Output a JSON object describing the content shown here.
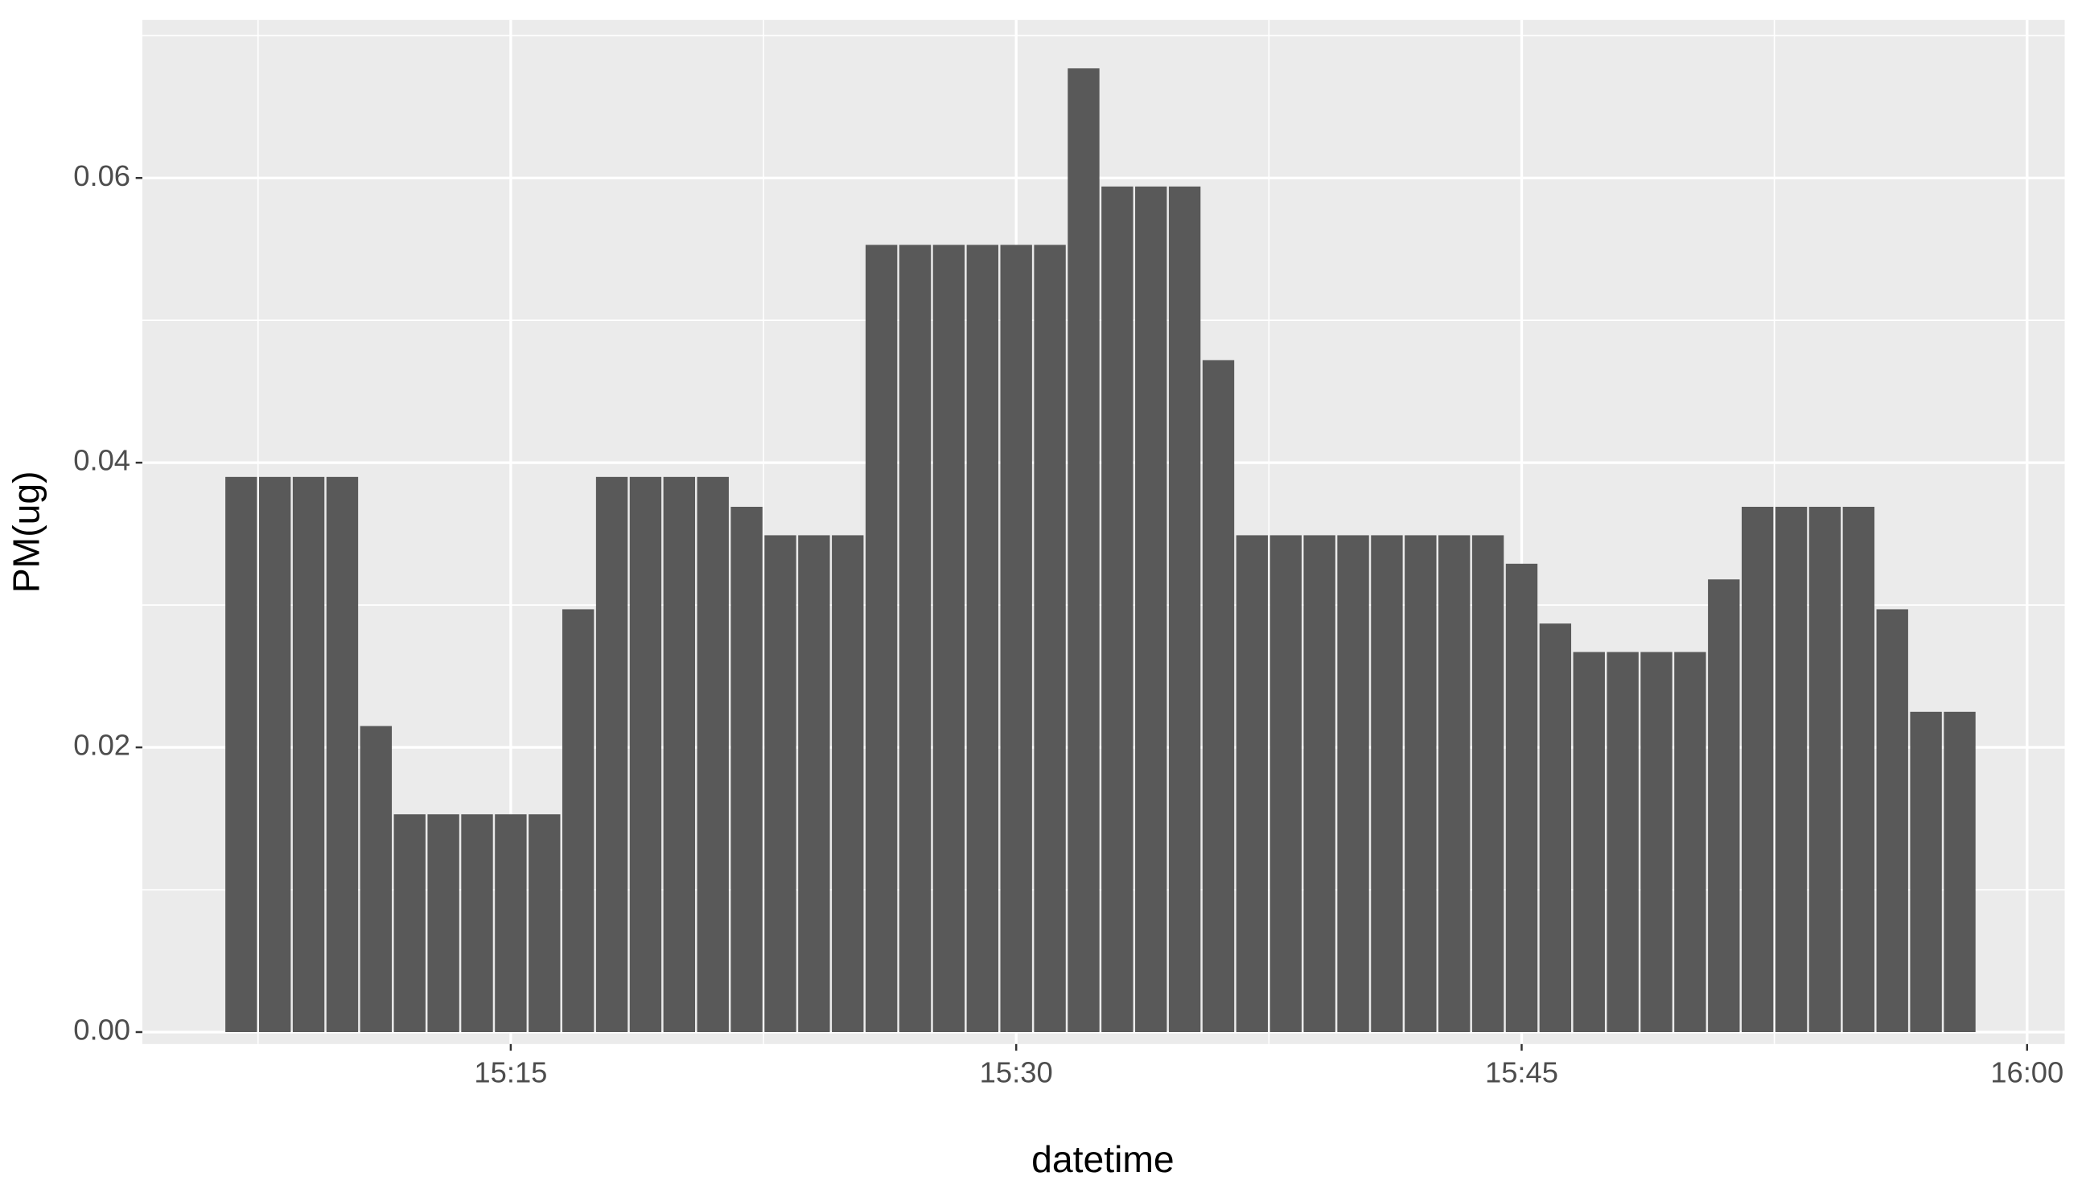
{
  "chart_data": {
    "type": "bar",
    "x_label": "datetime",
    "y_label": "PM(ug)",
    "color": "#595959",
    "grid": true,
    "x": [
      "15:07",
      "15:08",
      "15:09",
      "15:10",
      "15:11",
      "15:12",
      "15:13",
      "15:14",
      "15:15",
      "15:16",
      "15:17",
      "15:18",
      "15:19",
      "15:20",
      "15:21",
      "15:22",
      "15:23",
      "15:24",
      "15:25",
      "15:26",
      "15:27",
      "15:28",
      "15:29",
      "15:30",
      "15:31",
      "15:32",
      "15:33",
      "15:34",
      "15:35",
      "15:36",
      "15:37",
      "15:38",
      "15:39",
      "15:40",
      "15:41",
      "15:42",
      "15:43",
      "15:44",
      "15:45",
      "15:46",
      "15:47",
      "15:48",
      "15:49",
      "15:50",
      "15:51",
      "15:52",
      "15:53",
      "15:54",
      "15:55",
      "15:56",
      "15:57",
      "15:58"
    ],
    "values": [
      0.039,
      0.039,
      0.039,
      0.039,
      0.0215,
      0.0153,
      0.0153,
      0.0153,
      0.0153,
      0.0153,
      0.0297,
      0.039,
      0.039,
      0.039,
      0.039,
      0.0369,
      0.0349,
      0.0349,
      0.0349,
      0.0553,
      0.0553,
      0.0553,
      0.0553,
      0.0553,
      0.0553,
      0.0677,
      0.0594,
      0.0594,
      0.0594,
      0.0472,
      0.0349,
      0.0349,
      0.0349,
      0.0349,
      0.0349,
      0.0349,
      0.0349,
      0.0349,
      0.0329,
      0.0287,
      0.0267,
      0.0267,
      0.0267,
      0.0267,
      0.0318,
      0.0369,
      0.0369,
      0.0369,
      0.0369,
      0.0297,
      0.0225,
      0.0225
    ],
    "xlim": [
      "15:04:04",
      "16:01:07"
    ],
    "xticks": [
      "15:15",
      "15:30",
      "15:45",
      "16:00"
    ],
    "ylim": [
      -0.00084,
      0.0711
    ],
    "yticks": [
      {
        "value": 0,
        "label": "0.00"
      },
      {
        "value": 0.02,
        "label": "0.02"
      },
      {
        "value": 0.04,
        "label": "0.04"
      },
      {
        "value": 0.06,
        "label": "0.06"
      }
    ]
  }
}
